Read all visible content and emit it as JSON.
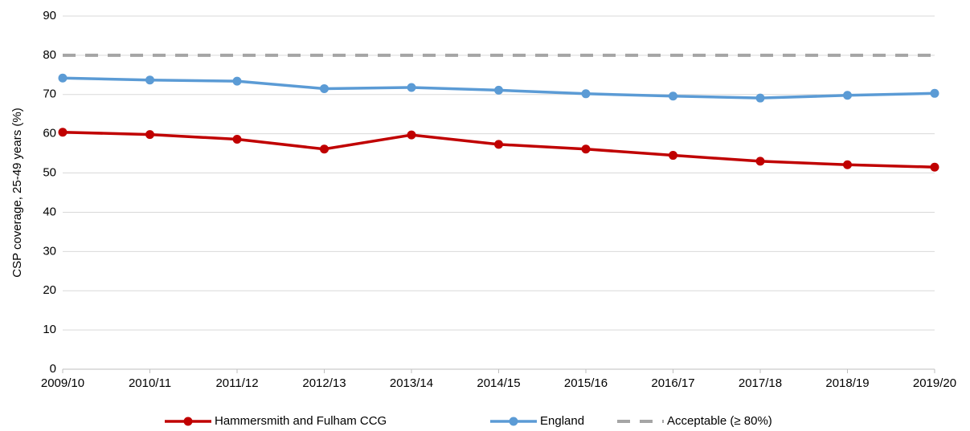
{
  "chart_data": {
    "type": "line",
    "ylabel": "CSP coverage, 25-49 years (%)",
    "categories": [
      "2009/10",
      "2010/11",
      "2011/12",
      "2012/13",
      "2013/14",
      "2014/15",
      "2015/16",
      "2016/17",
      "2017/18",
      "2018/19",
      "2019/20"
    ],
    "series": [
      {
        "name": "Hammersmith and Fulham CCG",
        "color": "#c00000",
        "marker": true,
        "dashed": false,
        "values": [
          60.4,
          59.8,
          58.6,
          56.1,
          59.7,
          57.3,
          56.1,
          54.5,
          53.0,
          52.1,
          51.5
        ]
      },
      {
        "name": "England",
        "color": "#5b9bd5",
        "marker": true,
        "dashed": false,
        "values": [
          74.2,
          73.7,
          73.4,
          71.5,
          71.8,
          71.1,
          70.2,
          69.6,
          69.1,
          69.8,
          70.3
        ]
      },
      {
        "name": "Acceptable (≥ 80%)",
        "color": "#a5a5a5",
        "marker": false,
        "dashed": true,
        "values": [
          80,
          80,
          80,
          80,
          80,
          80,
          80,
          80,
          80,
          80,
          80
        ]
      }
    ],
    "ylim": [
      0,
      90
    ],
    "yticks": [
      0,
      10,
      20,
      30,
      40,
      50,
      60,
      70,
      80,
      90
    ],
    "grid": true,
    "legend": "bottom"
  }
}
